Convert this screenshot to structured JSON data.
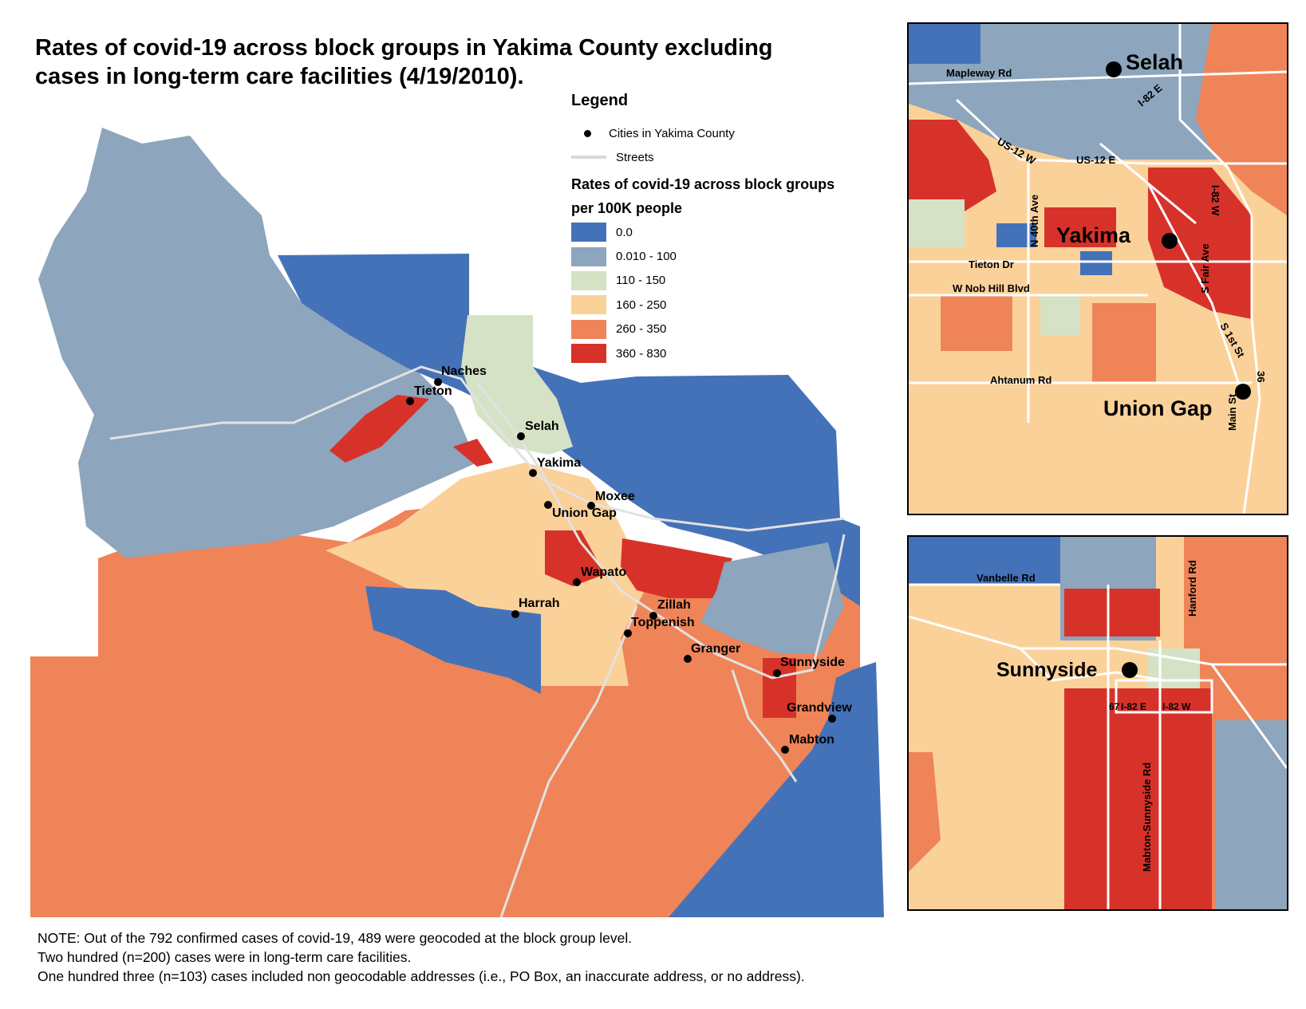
{
  "title": {
    "line1": "Rates of covid-19 across block groups in Yakima County excluding",
    "line2": "cases in long-term care facilities (4/19/2010)."
  },
  "legend": {
    "title": "Legend",
    "cities_label": "Cities in Yakima County",
    "streets_label": "Streets",
    "rates_title_line1": "Rates of covid-19 across block groups",
    "rates_title_line2": "per 100K people",
    "bins": [
      {
        "label": "0.0",
        "color": "#4472b8"
      },
      {
        "label": "0.010 - 100",
        "color": "#8da5bd"
      },
      {
        "label": "110 - 150",
        "color": "#d6e2c5"
      },
      {
        "label": "160 - 250",
        "color": "#fbd19a"
      },
      {
        "label": "260 - 350",
        "color": "#ef8459"
      },
      {
        "label": "360 - 830",
        "color": "#d7322a"
      }
    ]
  },
  "main_map": {
    "cities": [
      "Naches",
      "Tieton",
      "Selah",
      "Yakima",
      "Moxee",
      "Union Gap",
      "Wapato",
      "Harrah",
      "Zillah",
      "Toppenish",
      "Granger",
      "Sunnyside",
      "Grandview",
      "Mabton"
    ]
  },
  "inset_yakima": {
    "cities": [
      "Selah",
      "Yakima",
      "Union Gap"
    ],
    "streets": [
      "Mapleway Rd",
      "I-82 E",
      "US-12 W",
      "US-12 E",
      "N 40th Ave",
      "I-82 W",
      "S Fair Ave",
      "Tieton Dr",
      "W Nob Hill Blvd",
      "S 1st St",
      "Ahtanum Rd",
      "36",
      "Main St"
    ]
  },
  "inset_sunnyside": {
    "city": "Sunnyside",
    "streets": [
      "Vanbelle Rd",
      "Hanford Rd",
      "67",
      "I-82 E",
      "I-82 W",
      "Mabton-Sunnyside Rd"
    ]
  },
  "note": {
    "line1": "NOTE: Out of the 792 confirmed cases of covid-19, 489 were geocoded at the block group level.",
    "line2": "Two hundred (n=200) cases were in long-term care facilities.",
    "line3": "One hundred three (n=103) cases included non geocodable addresses (i.e., PO Box, an inaccurate address, or no address)."
  }
}
